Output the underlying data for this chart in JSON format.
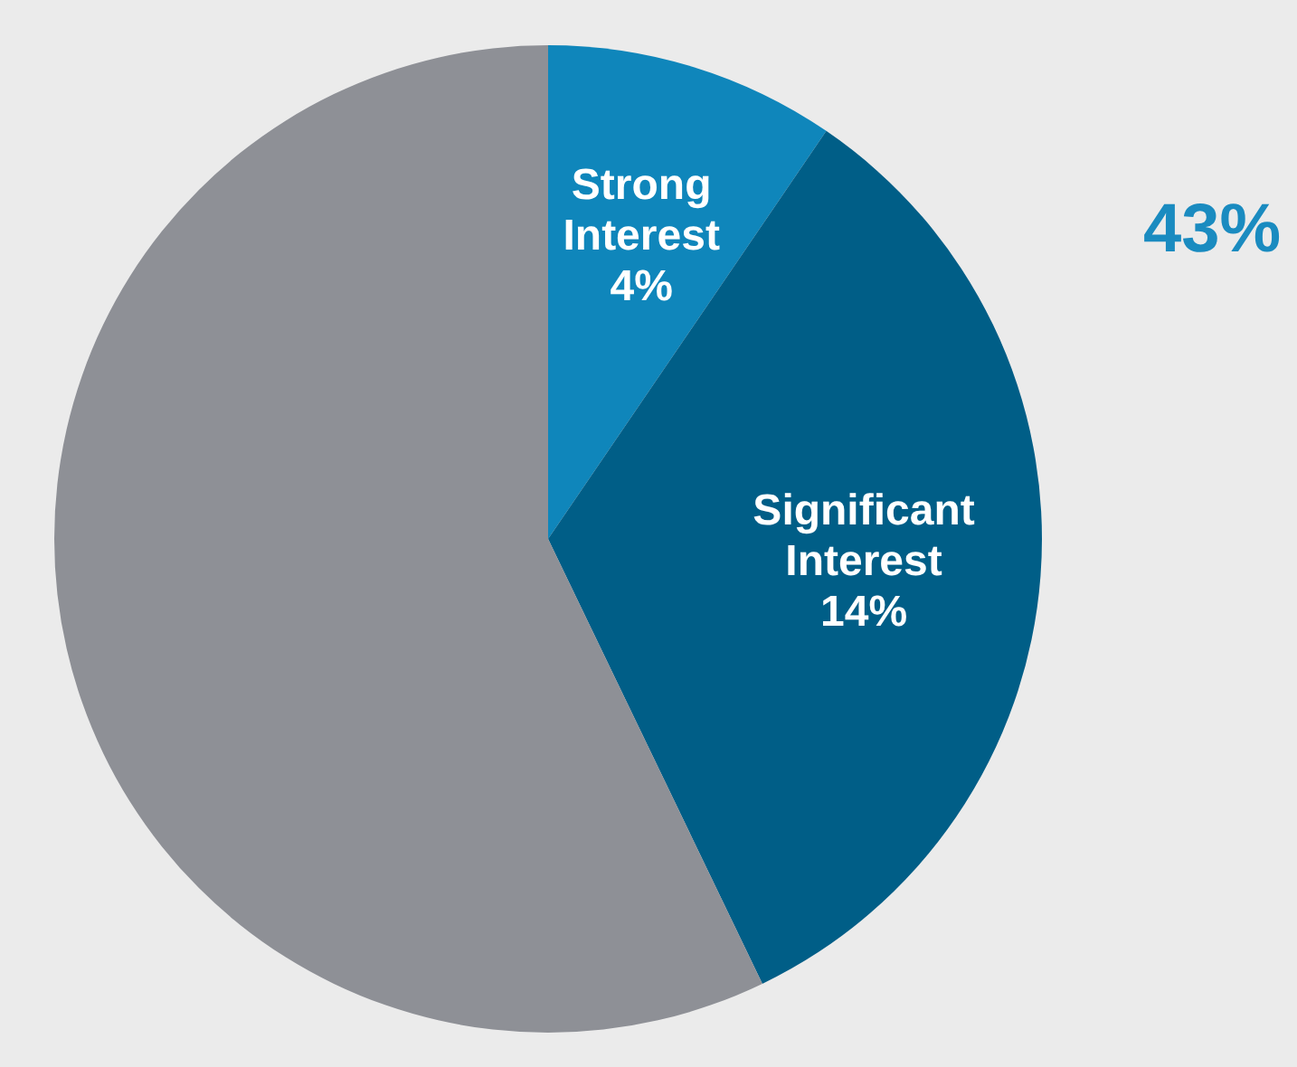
{
  "chart_data": {
    "type": "pie",
    "categories": [
      "Strong Interest",
      "Significant Interest",
      null
    ],
    "values": [
      4,
      14,
      24
    ],
    "colors": [
      "#0f86bb",
      "#005e87",
      "#8e9096"
    ],
    "value_labels": [
      "4%",
      "14%",
      null
    ],
    "annotations": [
      "43%"
    ]
  }
}
